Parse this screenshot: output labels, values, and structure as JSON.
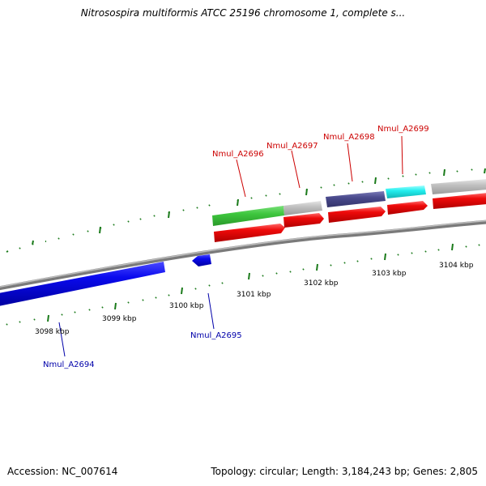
{
  "title": "Nitrosospira multiformis ATCC 25196 chromosome 1, complete s...",
  "footer": {
    "accession": "Accession: NC_007614",
    "topology": "Topology: circular; Length: 3,184,243 bp; Genes: 2,805"
  },
  "colors": {
    "backbone": "#808080",
    "tick": "#1a7a1a",
    "reverse_strand": "#0a0aee",
    "forward_cds": "#ee0a0a",
    "label_forward": "#cc0000",
    "label_reverse": "#0000aa",
    "green_feature": "#3ec63e",
    "grey_feature": "#c0c0c0",
    "slate_feature": "#4a4a8c",
    "cyan_feature": "#22eeee"
  },
  "scale": {
    "unit": "kbp",
    "ticks": [
      "3098 kbp",
      "3099 kbp",
      "3100 kbp",
      "3101 kbp",
      "3102 kbp",
      "3103 kbp",
      "3104 kbp"
    ]
  },
  "gene_labels": [
    {
      "name": "Nmul_A2694",
      "strand": "reverse"
    },
    {
      "name": "Nmul_A2695",
      "strand": "reverse"
    },
    {
      "name": "Nmul_A2696",
      "strand": "forward"
    },
    {
      "name": "Nmul_A2697",
      "strand": "forward"
    },
    {
      "name": "Nmul_A2698",
      "strand": "forward"
    },
    {
      "name": "Nmul_A2699",
      "strand": "forward"
    }
  ]
}
